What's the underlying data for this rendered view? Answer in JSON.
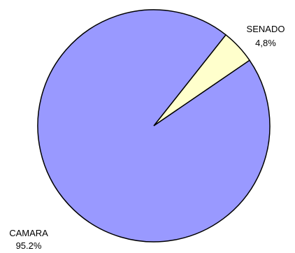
{
  "chart_data": {
    "type": "pie",
    "slices": [
      {
        "category": "SENADO",
        "value_label": "4,8%",
        "value": 4.8,
        "color": "#FFFFCC"
      },
      {
        "category": "CAMARA",
        "value_label": "95.2%",
        "value": 95.2,
        "color": "#9999FF"
      }
    ],
    "legend": "none"
  }
}
